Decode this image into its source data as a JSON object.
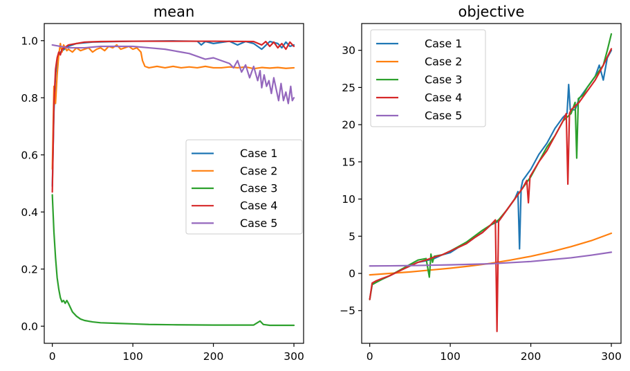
{
  "chart_data": [
    {
      "type": "line",
      "title": "mean",
      "xlabel": "",
      "ylabel": "",
      "xlim": [
        -10,
        312
      ],
      "ylim": [
        -0.06,
        1.06
      ],
      "xticks": [
        0,
        100,
        200,
        300
      ],
      "yticks": [
        0.0,
        0.2,
        0.4,
        0.6,
        0.8,
        1.0
      ],
      "ytick_labels": [
        "0.0",
        "0.2",
        "0.4",
        "0.6",
        "0.8",
        "1.0"
      ],
      "legend_position": "center-right",
      "series": [
        {
          "name": "Case 1",
          "color": "#1f77b4",
          "x": [
            0,
            2,
            4,
            6,
            8,
            10,
            15,
            20,
            30,
            50,
            80,
            100,
            150,
            180,
            185,
            190,
            200,
            220,
            230,
            240,
            250,
            260,
            270,
            280,
            285,
            290,
            295,
            300
          ],
          "y": [
            0.49,
            0.75,
            0.88,
            0.93,
            0.95,
            0.96,
            0.97,
            0.98,
            0.99,
            0.995,
            0.997,
            0.998,
            0.999,
            0.998,
            0.985,
            0.997,
            0.99,
            0.998,
            0.985,
            0.997,
            0.99,
            0.97,
            0.997,
            0.99,
            0.975,
            0.995,
            0.98,
            0.985
          ]
        },
        {
          "name": "Case 2",
          "color": "#ff7f0e",
          "x": [
            0,
            2,
            4,
            6,
            8,
            10,
            12,
            14,
            16,
            18,
            20,
            25,
            30,
            35,
            40,
            45,
            50,
            55,
            60,
            65,
            70,
            75,
            80,
            85,
            90,
            95,
            100,
            105,
            110,
            112,
            115,
            120,
            130,
            140,
            150,
            160,
            170,
            180,
            190,
            200,
            210,
            220,
            230,
            240,
            250,
            260,
            270,
            280,
            290,
            300
          ],
          "y": [
            0.55,
            0.84,
            0.78,
            0.88,
            0.95,
            0.99,
            0.96,
            0.985,
            0.975,
            0.965,
            0.97,
            0.96,
            0.975,
            0.965,
            0.97,
            0.975,
            0.96,
            0.97,
            0.975,
            0.965,
            0.98,
            0.975,
            0.985,
            0.97,
            0.975,
            0.98,
            0.97,
            0.975,
            0.96,
            0.93,
            0.91,
            0.905,
            0.91,
            0.905,
            0.91,
            0.905,
            0.908,
            0.905,
            0.91,
            0.905,
            0.905,
            0.908,
            0.905,
            0.908,
            0.902,
            0.906,
            0.904,
            0.906,
            0.903,
            0.905
          ]
        },
        {
          "name": "Case 3",
          "color": "#2ca02c",
          "x": [
            0,
            2,
            4,
            6,
            8,
            10,
            12,
            14,
            16,
            18,
            20,
            25,
            30,
            35,
            40,
            50,
            60,
            80,
            100,
            120,
            150,
            200,
            250,
            258,
            262,
            270,
            300
          ],
          "y": [
            0.46,
            0.33,
            0.24,
            0.17,
            0.13,
            0.1,
            0.085,
            0.09,
            0.08,
            0.09,
            0.08,
            0.05,
            0.035,
            0.025,
            0.02,
            0.015,
            0.012,
            0.01,
            0.008,
            0.006,
            0.005,
            0.004,
            0.004,
            0.018,
            0.006,
            0.003,
            0.003
          ]
        },
        {
          "name": "Case 4",
          "color": "#d62728",
          "x": [
            0,
            2,
            4,
            6,
            8,
            10,
            12,
            15,
            20,
            30,
            40,
            60,
            100,
            150,
            200,
            250,
            260,
            265,
            270,
            275,
            280,
            285,
            290,
            295,
            300
          ],
          "y": [
            0.47,
            0.78,
            0.9,
            0.94,
            0.96,
            0.95,
            0.97,
            0.975,
            0.985,
            0.99,
            0.995,
            0.997,
            0.998,
            0.998,
            0.998,
            0.997,
            0.985,
            0.997,
            0.98,
            0.995,
            0.975,
            0.99,
            0.97,
            0.995,
            0.98
          ]
        },
        {
          "name": "Case 5",
          "color": "#9467bd",
          "x": [
            0,
            20,
            40,
            60,
            80,
            100,
            120,
            140,
            150,
            160,
            170,
            180,
            190,
            200,
            210,
            220,
            225,
            230,
            235,
            240,
            245,
            250,
            255,
            258,
            260,
            263,
            266,
            269,
            272,
            275,
            278,
            281,
            284,
            287,
            290,
            293,
            296,
            298,
            300
          ],
          "y": [
            0.985,
            0.975,
            0.975,
            0.98,
            0.98,
            0.98,
            0.975,
            0.97,
            0.965,
            0.96,
            0.955,
            0.945,
            0.935,
            0.94,
            0.93,
            0.92,
            0.905,
            0.93,
            0.89,
            0.915,
            0.87,
            0.91,
            0.86,
            0.895,
            0.835,
            0.88,
            0.84,
            0.86,
            0.815,
            0.87,
            0.83,
            0.79,
            0.85,
            0.79,
            0.82,
            0.78,
            0.84,
            0.79,
            0.8
          ]
        }
      ]
    },
    {
      "type": "line",
      "title": "objective",
      "xlabel": "",
      "ylabel": "",
      "xlim": [
        -10,
        312
      ],
      "ylim": [
        -9.4,
        33.6
      ],
      "xticks": [
        0,
        100,
        200,
        300
      ],
      "yticks": [
        -5,
        0,
        5,
        10,
        15,
        20,
        25,
        30
      ],
      "ytick_labels": [
        "−5",
        "0",
        "5",
        "10",
        "15",
        "20",
        "25",
        "30"
      ],
      "legend_position": "upper-left",
      "series": [
        {
          "name": "Case 1",
          "color": "#1f77b4",
          "x": [
            0,
            3,
            8,
            15,
            25,
            40,
            50,
            60,
            70,
            80,
            90,
            100,
            110,
            120,
            130,
            140,
            150,
            160,
            170,
            180,
            184,
            186,
            188,
            190,
            200,
            210,
            220,
            230,
            240,
            245,
            247,
            249,
            255,
            260,
            270,
            280,
            285,
            290,
            295,
            300
          ],
          "y": [
            -3.5,
            -1.5,
            -1.2,
            -0.8,
            -0.3,
            0.5,
            1.0,
            1.5,
            1.7,
            2.0,
            2.5,
            2.8,
            3.5,
            4.0,
            4.8,
            5.5,
            6.5,
            7.0,
            8.5,
            10.0,
            11.0,
            3.3,
            11.5,
            12.5,
            14.0,
            16.0,
            17.5,
            19.5,
            21.0,
            21.5,
            25.4,
            22.0,
            22.0,
            23.5,
            25.0,
            26.5,
            28.0,
            26.0,
            29.0,
            30.0
          ]
        },
        {
          "name": "Case 2",
          "color": "#ff7f0e",
          "x": [
            0,
            25,
            50,
            75,
            100,
            125,
            150,
            175,
            200,
            225,
            250,
            275,
            300
          ],
          "y": [
            -0.2,
            0.0,
            0.2,
            0.45,
            0.7,
            1.0,
            1.35,
            1.8,
            2.3,
            2.9,
            3.6,
            4.4,
            5.4
          ]
        },
        {
          "name": "Case 3",
          "color": "#2ca02c",
          "x": [
            0,
            3,
            8,
            15,
            25,
            40,
            50,
            60,
            70,
            74,
            76,
            78,
            80,
            90,
            100,
            110,
            120,
            130,
            140,
            150,
            160,
            170,
            180,
            190,
            200,
            210,
            220,
            230,
            240,
            250,
            255,
            257,
            259,
            265,
            270,
            280,
            290,
            295,
            300
          ],
          "y": [
            -3.5,
            -1.5,
            -1.2,
            -0.8,
            -0.3,
            0.6,
            1.2,
            1.8,
            2.0,
            -0.5,
            2.6,
            1.5,
            2.3,
            2.5,
            3.0,
            3.6,
            4.2,
            5.0,
            5.8,
            6.5,
            7.2,
            8.5,
            10.0,
            11.5,
            13.0,
            15.0,
            17.0,
            18.5,
            20.5,
            21.5,
            23.0,
            15.5,
            23.5,
            24.0,
            25.0,
            26.5,
            28.0,
            30.0,
            32.2
          ]
        },
        {
          "name": "Case 4",
          "color": "#d62728",
          "x": [
            0,
            3,
            8,
            15,
            25,
            40,
            50,
            60,
            70,
            80,
            90,
            100,
            110,
            120,
            130,
            140,
            150,
            156,
            158,
            160,
            170,
            180,
            190,
            195,
            197,
            199,
            210,
            220,
            230,
            240,
            244,
            246,
            248,
            250,
            260,
            270,
            280,
            290,
            300
          ],
          "y": [
            -3.5,
            -1.3,
            -1.0,
            -0.7,
            -0.3,
            0.5,
            1.0,
            1.5,
            1.8,
            2.2,
            2.5,
            3.0,
            3.5,
            4.0,
            4.8,
            5.5,
            6.5,
            7.2,
            -7.8,
            7.0,
            8.5,
            10.0,
            11.5,
            12.5,
            9.5,
            13.0,
            15.0,
            16.5,
            18.5,
            20.5,
            21.5,
            12.0,
            21.5,
            22.0,
            23.0,
            24.5,
            26.0,
            28.0,
            30.2
          ]
        },
        {
          "name": "Case 5",
          "color": "#9467bd",
          "x": [
            0,
            25,
            50,
            75,
            100,
            125,
            150,
            175,
            200,
            225,
            250,
            275,
            300
          ],
          "y": [
            1.0,
            1.02,
            1.05,
            1.1,
            1.15,
            1.22,
            1.3,
            1.45,
            1.6,
            1.85,
            2.1,
            2.45,
            2.85
          ]
        }
      ]
    }
  ]
}
